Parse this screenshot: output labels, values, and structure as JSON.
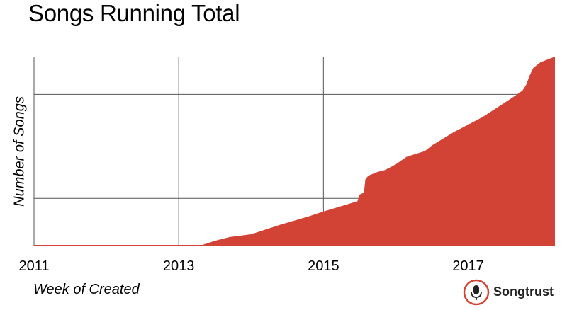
{
  "header": {
    "title": "Songs Running Total"
  },
  "logo": {
    "text": "Songtrust",
    "icon": "microphone-icon",
    "accent": "#d24336"
  },
  "chart_data": {
    "type": "area",
    "title": "Songs Running Total",
    "xlabel": "Week of Created",
    "ylabel": "Number of Songs",
    "color": "#d24336",
    "grid": true,
    "xlim": [
      2011,
      2018.2
    ],
    "ylim": [
      0,
      1
    ],
    "x_ticks": [
      2011,
      2013,
      2015,
      2017
    ],
    "x_tick_labels": [
      "2011",
      "2013",
      "2015",
      "2017"
    ],
    "y_gridlines": [
      0.25,
      0.8
    ],
    "x": [
      2011.0,
      2013.0,
      2013.3,
      2013.5,
      2013.7,
      2014.0,
      2014.4,
      2014.8,
      2015.0,
      2015.3,
      2015.47,
      2015.5,
      2015.56,
      2015.58,
      2015.62,
      2015.75,
      2015.85,
      2016.0,
      2016.15,
      2016.4,
      2016.5,
      2016.8,
      2017.0,
      2017.2,
      2017.4,
      2017.6,
      2017.75,
      2017.8,
      2017.85,
      2017.9,
      2018.0,
      2018.2
    ],
    "values": [
      0.0,
      0.0,
      0.0,
      0.025,
      0.045,
      0.06,
      0.11,
      0.155,
      0.18,
      0.215,
      0.235,
      0.27,
      0.28,
      0.35,
      0.37,
      0.39,
      0.4,
      0.43,
      0.47,
      0.5,
      0.53,
      0.6,
      0.64,
      0.68,
      0.73,
      0.78,
      0.82,
      0.85,
      0.9,
      0.94,
      0.97,
      1.0
    ]
  }
}
